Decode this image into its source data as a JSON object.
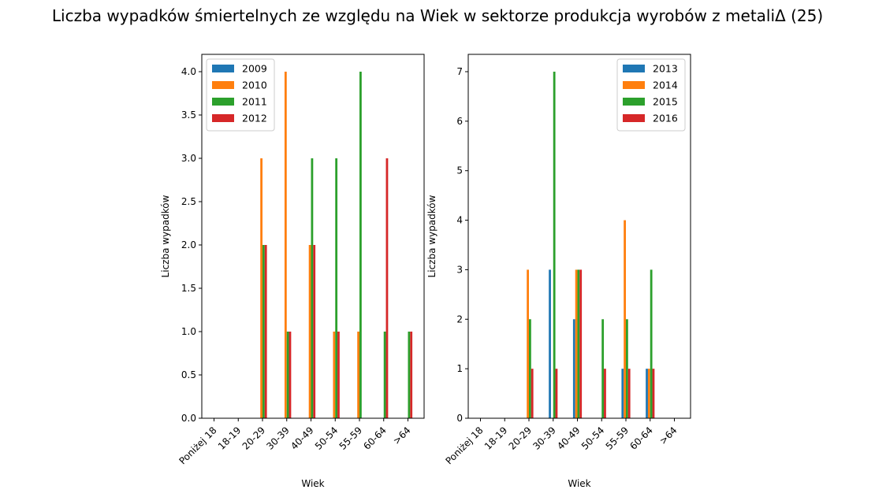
{
  "title": "Liczba wypadków śmiertelnych ze względu na Wiek w sektorze produkcja wyrobów z metaliΔ (25)",
  "colors": [
    "#1f77b4",
    "#ff7f0e",
    "#2ca02c",
    "#d62728"
  ],
  "chart_data": [
    {
      "type": "bar",
      "xlabel": "Wiek",
      "ylabel": "Liczba wypadków",
      "categories": [
        "Poniżej 18",
        "18-19",
        "20-29",
        "30-39",
        "40-49",
        "50-54",
        "55-59",
        "60-64",
        ">64"
      ],
      "ylim": [
        0,
        4.2
      ],
      "yticks": [
        0,
        0.5,
        1.0,
        1.5,
        2.0,
        2.5,
        3.0,
        3.5,
        4.0
      ],
      "ytick_labels": [
        "0.0",
        "0.5",
        "1.0",
        "1.5",
        "2.0",
        "2.5",
        "3.0",
        "3.5",
        "4.0"
      ],
      "legend_position": "top-left",
      "series": [
        {
          "name": "2009",
          "values": [
            0,
            0,
            0,
            0,
            0,
            0,
            0,
            0,
            0
          ]
        },
        {
          "name": "2010",
          "values": [
            0,
            0,
            3,
            4,
            2,
            1,
            1,
            0,
            0
          ]
        },
        {
          "name": "2011",
          "values": [
            0,
            0,
            2,
            1,
            3,
            3,
            4,
            1,
            1
          ]
        },
        {
          "name": "2012",
          "values": [
            0,
            0,
            2,
            1,
            2,
            1,
            0,
            3,
            1
          ]
        }
      ]
    },
    {
      "type": "bar",
      "xlabel": "Wiek",
      "ylabel": "Liczba wypadków",
      "categories": [
        "Poniżej 18",
        "18-19",
        "20-29",
        "30-39",
        "40-49",
        "50-54",
        "55-59",
        "60-64",
        ">64"
      ],
      "ylim": [
        0,
        7.35
      ],
      "yticks": [
        0,
        1,
        2,
        3,
        4,
        5,
        6,
        7
      ],
      "ytick_labels": [
        "0",
        "1",
        "2",
        "3",
        "4",
        "5",
        "6",
        "7"
      ],
      "legend_position": "top-right",
      "series": [
        {
          "name": "2013",
          "values": [
            0,
            0,
            0,
            3,
            2,
            0,
            1,
            1,
            0
          ]
        },
        {
          "name": "2014",
          "values": [
            0,
            0,
            3,
            0,
            3,
            0,
            4,
            1,
            0
          ]
        },
        {
          "name": "2015",
          "values": [
            0,
            0,
            2,
            7,
            3,
            2,
            2,
            3,
            0
          ]
        },
        {
          "name": "2016",
          "values": [
            0,
            0,
            1,
            1,
            3,
            1,
            1,
            1,
            0
          ]
        }
      ]
    }
  ]
}
